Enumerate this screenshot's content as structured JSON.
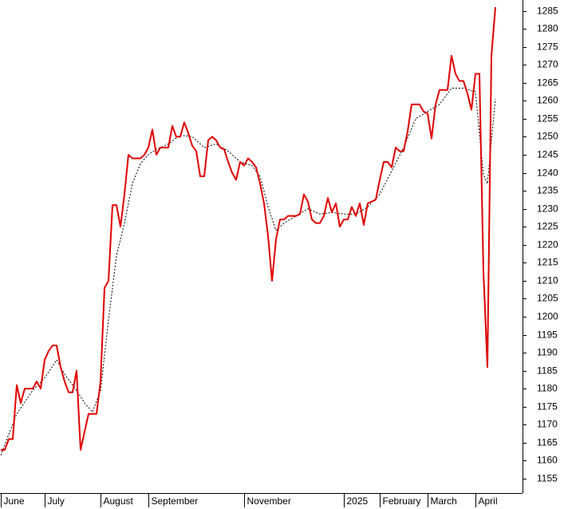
{
  "chart_data": {
    "type": "line",
    "categories": [
      "June",
      null,
      null,
      null,
      null,
      null,
      null,
      null,
      null,
      null,
      null,
      "July",
      null,
      null,
      null,
      null,
      null,
      null,
      null,
      null,
      null,
      null,
      null,
      null,
      null,
      "August",
      null,
      null,
      null,
      null,
      null,
      null,
      null,
      null,
      null,
      null,
      null,
      "September",
      null,
      null,
      null,
      null,
      null,
      null,
      null,
      null,
      null,
      null,
      null,
      null,
      null,
      null,
      null,
      null,
      null,
      null,
      null,
      null,
      null,
      null,
      null,
      "November",
      null,
      null,
      null,
      null,
      null,
      null,
      null,
      null,
      null,
      null,
      null,
      null,
      null,
      null,
      null,
      null,
      null,
      null,
      null,
      null,
      null,
      null,
      null,
      null,
      "2025",
      null,
      null,
      null,
      null,
      null,
      null,
      null,
      null,
      "February",
      null,
      null,
      null,
      null,
      null,
      null,
      null,
      null,
      null,
      null,
      null,
      "March",
      null,
      null,
      null,
      null,
      null,
      null,
      null,
      null,
      null,
      null,
      null,
      "April",
      null,
      null,
      null,
      null,
      null
    ],
    "series": [
      {
        "color": "#e00000",
        "style": "solid",
        "values": [
          1163,
          1163,
          1166,
          1166,
          1181,
          1176,
          1180,
          1180,
          1180,
          1182,
          1180,
          1188,
          1190.5,
          1192,
          1192,
          1186,
          1182,
          1179,
          1179,
          1185,
          1163,
          1168,
          1173,
          1173,
          1173,
          1182,
          1208,
          1210,
          1231,
          1231,
          1225,
          1234,
          1245,
          1244,
          1244,
          1244,
          1245,
          1247,
          1252,
          1245,
          1247,
          1247,
          1247,
          1253,
          1250,
          1250,
          1254,
          1251,
          1247.5,
          1246,
          1239,
          1239,
          1249,
          1250,
          1249,
          1247,
          1246.5,
          1243,
          1240,
          1238,
          1243,
          1242,
          1244,
          1243,
          1241.5,
          1237,
          1231.5,
          1222.5,
          1210,
          1221.5,
          1227,
          1227,
          1228,
          1228,
          1228,
          1228.5,
          1234,
          1232,
          1227,
          1226,
          1226,
          1228,
          1233,
          1229,
          1231.5,
          1225,
          1227,
          1227,
          1230.5,
          1228,
          1231.5,
          1225.5,
          1231.5,
          1232,
          1232.5,
          1238,
          1243,
          1243,
          1241.5,
          1247,
          1246,
          1246,
          1251.5,
          1259,
          1259,
          1259,
          1257,
          1256.5,
          1249.5,
          1259,
          1263,
          1263,
          1263,
          1272.5,
          1267.5,
          1265.5,
          1265.5,
          1262,
          1257.5,
          1267.5,
          1267.5,
          1212.5,
          1186,
          1272.5,
          1286
        ]
      },
      {
        "color": "#000000",
        "style": "dashed",
        "values": [
          1161.5,
          1164.4,
          1167.3,
          1170.1,
          1173,
          1174.6,
          1176.3,
          1177.9,
          1179.5,
          1180.7,
          1181.8,
          1183,
          1184.7,
          1186.3,
          1188,
          1186,
          1184,
          1182.5,
          1181,
          1179.5,
          1177.8,
          1176,
          1174.8,
          1173.5,
          1176.5,
          1179.5,
          1189.3,
          1199,
          1208,
          1217,
          1221.5,
          1226,
          1231.5,
          1237,
          1239.8,
          1242.5,
          1243.8,
          1245,
          1245.8,
          1246.5,
          1247,
          1247.5,
          1248,
          1248.8,
          1249.7,
          1250.5,
          1250.3,
          1250.2,
          1250,
          1249,
          1248,
          1247,
          1247.3,
          1247.7,
          1248,
          1247.3,
          1246.7,
          1246,
          1245,
          1244,
          1243,
          1242.7,
          1242.3,
          1242,
          1240.5,
          1239,
          1234.8,
          1230.5,
          1227.3,
          1224,
          1225,
          1226,
          1226.7,
          1227.3,
          1228,
          1228.7,
          1229.3,
          1230,
          1229.5,
          1229,
          1228.5,
          1228.7,
          1228.8,
          1229,
          1228.8,
          1228.7,
          1228.5,
          1228.5,
          1228.5,
          1228.5,
          1229.2,
          1229.8,
          1230.5,
          1231.7,
          1232.8,
          1234,
          1236.2,
          1238.3,
          1240.5,
          1242.7,
          1244.8,
          1247,
          1249.7,
          1252.3,
          1255,
          1255.7,
          1256.3,
          1257,
          1257.7,
          1258.3,
          1259,
          1260.5,
          1262,
          1263.5,
          1263.5,
          1263.5,
          1263.5,
          1263.2,
          1262.8,
          1262.5,
          1251,
          1239.5,
          1237,
          1248.8,
          1260.5
        ]
      }
    ],
    "ylim": [
      1151,
      1288
    ],
    "yticks": [
      1155,
      1160,
      1165,
      1170,
      1175,
      1180,
      1185,
      1190,
      1195,
      1200,
      1205,
      1210,
      1215,
      1220,
      1225,
      1230,
      1235,
      1240,
      1245,
      1250,
      1255,
      1260,
      1265,
      1270,
      1275,
      1280,
      1285
    ],
    "y_axis_side": "right"
  }
}
